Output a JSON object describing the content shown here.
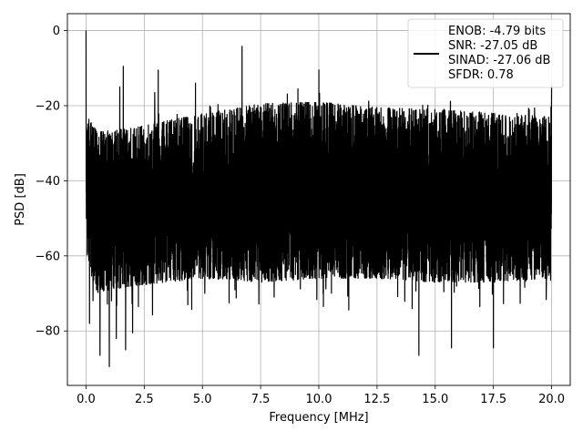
{
  "chart_data": {
    "type": "line",
    "xlabel": "Frequency [MHz]",
    "ylabel": "PSD [dB]",
    "xlim": [
      -0.8,
      20.8
    ],
    "ylim": [
      -94.5,
      4.5
    ],
    "xticks": [
      0.0,
      2.5,
      5.0,
      7.5,
      10.0,
      12.5,
      15.0,
      17.5,
      20.0
    ],
    "xtick_labels": [
      "0.0",
      "2.5",
      "5.0",
      "7.5",
      "10.0",
      "12.5",
      "15.0",
      "17.5",
      "20.0"
    ],
    "yticks": [
      0,
      -20,
      -40,
      -60,
      -80
    ],
    "ytick_labels": [
      "0",
      "−20",
      "−40",
      "−60",
      "−80"
    ],
    "grid": true,
    "legend": {
      "placement": "upper right",
      "entries": [
        "ENOB: -4.79 bits",
        "SNR: -27.05 dB",
        "SINAD: -27.06 dB",
        "SFDR: 0.78"
      ]
    },
    "series": [
      {
        "color": "#000000",
        "x_range": [
          0.0,
          20.0
        ],
        "noise_envelope": {
          "x": [
            0.0,
            0.05,
            0.5,
            2.0,
            5.0,
            7.5,
            10.0,
            12.5,
            15.0,
            17.5,
            19.95,
            20.0
          ],
          "upper": [
            -30,
            -23,
            -27,
            -26,
            -22,
            -19.5,
            -19,
            -20.5,
            -21,
            -22,
            -23,
            -16
          ],
          "lower": [
            -45,
            -62,
            -70,
            -68,
            -66,
            -67,
            -66,
            -66,
            -67,
            -67,
            -66,
            -45
          ]
        },
        "spurs": [
          {
            "x": 0.0,
            "y": 0.0
          },
          {
            "x": 1.6,
            "y": -9.5
          },
          {
            "x": 3.1,
            "y": -10.5
          },
          {
            "x": 1.45,
            "y": -15
          },
          {
            "x": 2.95,
            "y": -16.5
          },
          {
            "x": 4.7,
            "y": -14
          },
          {
            "x": 6.7,
            "y": -4.2
          },
          {
            "x": 9.1,
            "y": -15.5
          },
          {
            "x": 10.0,
            "y": -10.5
          },
          {
            "x": 20.0,
            "y": -14.5
          }
        ],
        "dips": [
          {
            "x": 0.15,
            "y": -78
          },
          {
            "x": 0.6,
            "y": -86.5
          },
          {
            "x": 1.0,
            "y": -89.5
          },
          {
            "x": 1.3,
            "y": -82
          },
          {
            "x": 1.7,
            "y": -85
          },
          {
            "x": 2.0,
            "y": -80.5
          },
          {
            "x": 14.3,
            "y": -86.5
          },
          {
            "x": 15.7,
            "y": -84.5
          },
          {
            "x": 17.5,
            "y": -84.5
          }
        ]
      }
    ]
  }
}
